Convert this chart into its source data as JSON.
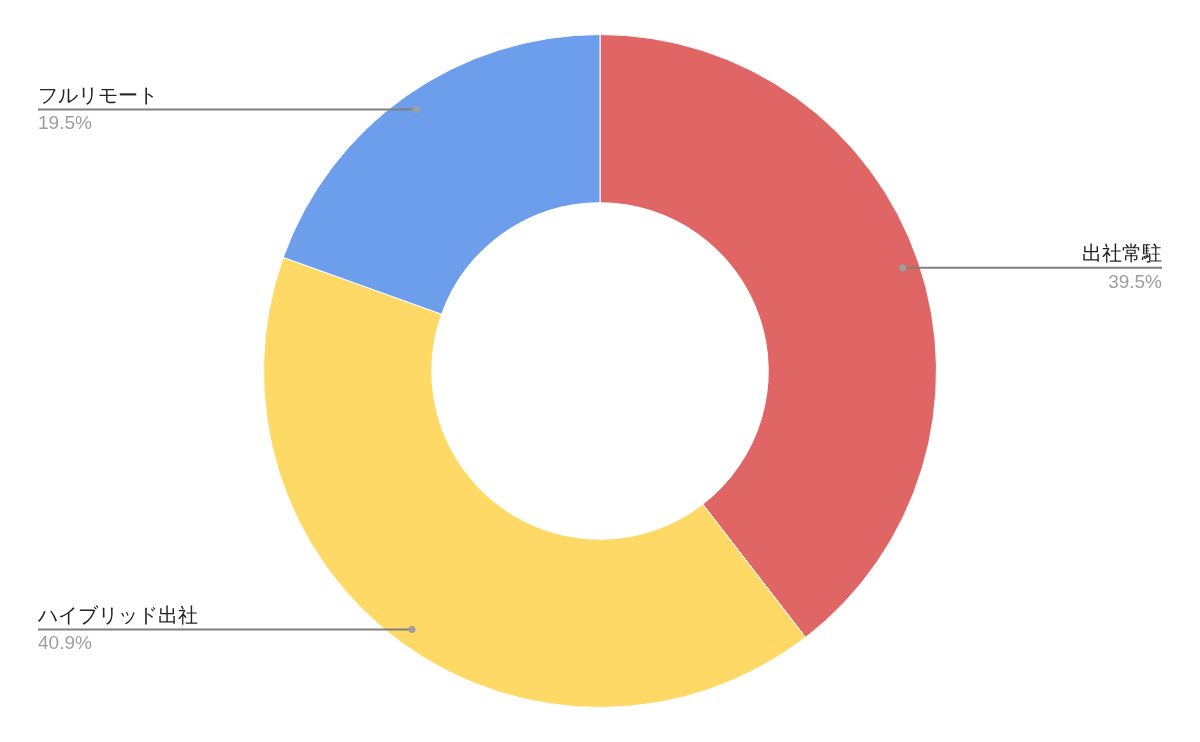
{
  "chart_data": {
    "type": "donut",
    "categories": [
      "出社常駐",
      "ハイブリッド出社",
      "フルリモート"
    ],
    "values": [
      39.5,
      40.9,
      19.5
    ],
    "colors": [
      "#e06666",
      "#ffd966",
      "#6d9eeb"
    ],
    "value_labels": [
      "39.5%",
      "40.9%",
      "19.5%"
    ],
    "legend": false
  }
}
